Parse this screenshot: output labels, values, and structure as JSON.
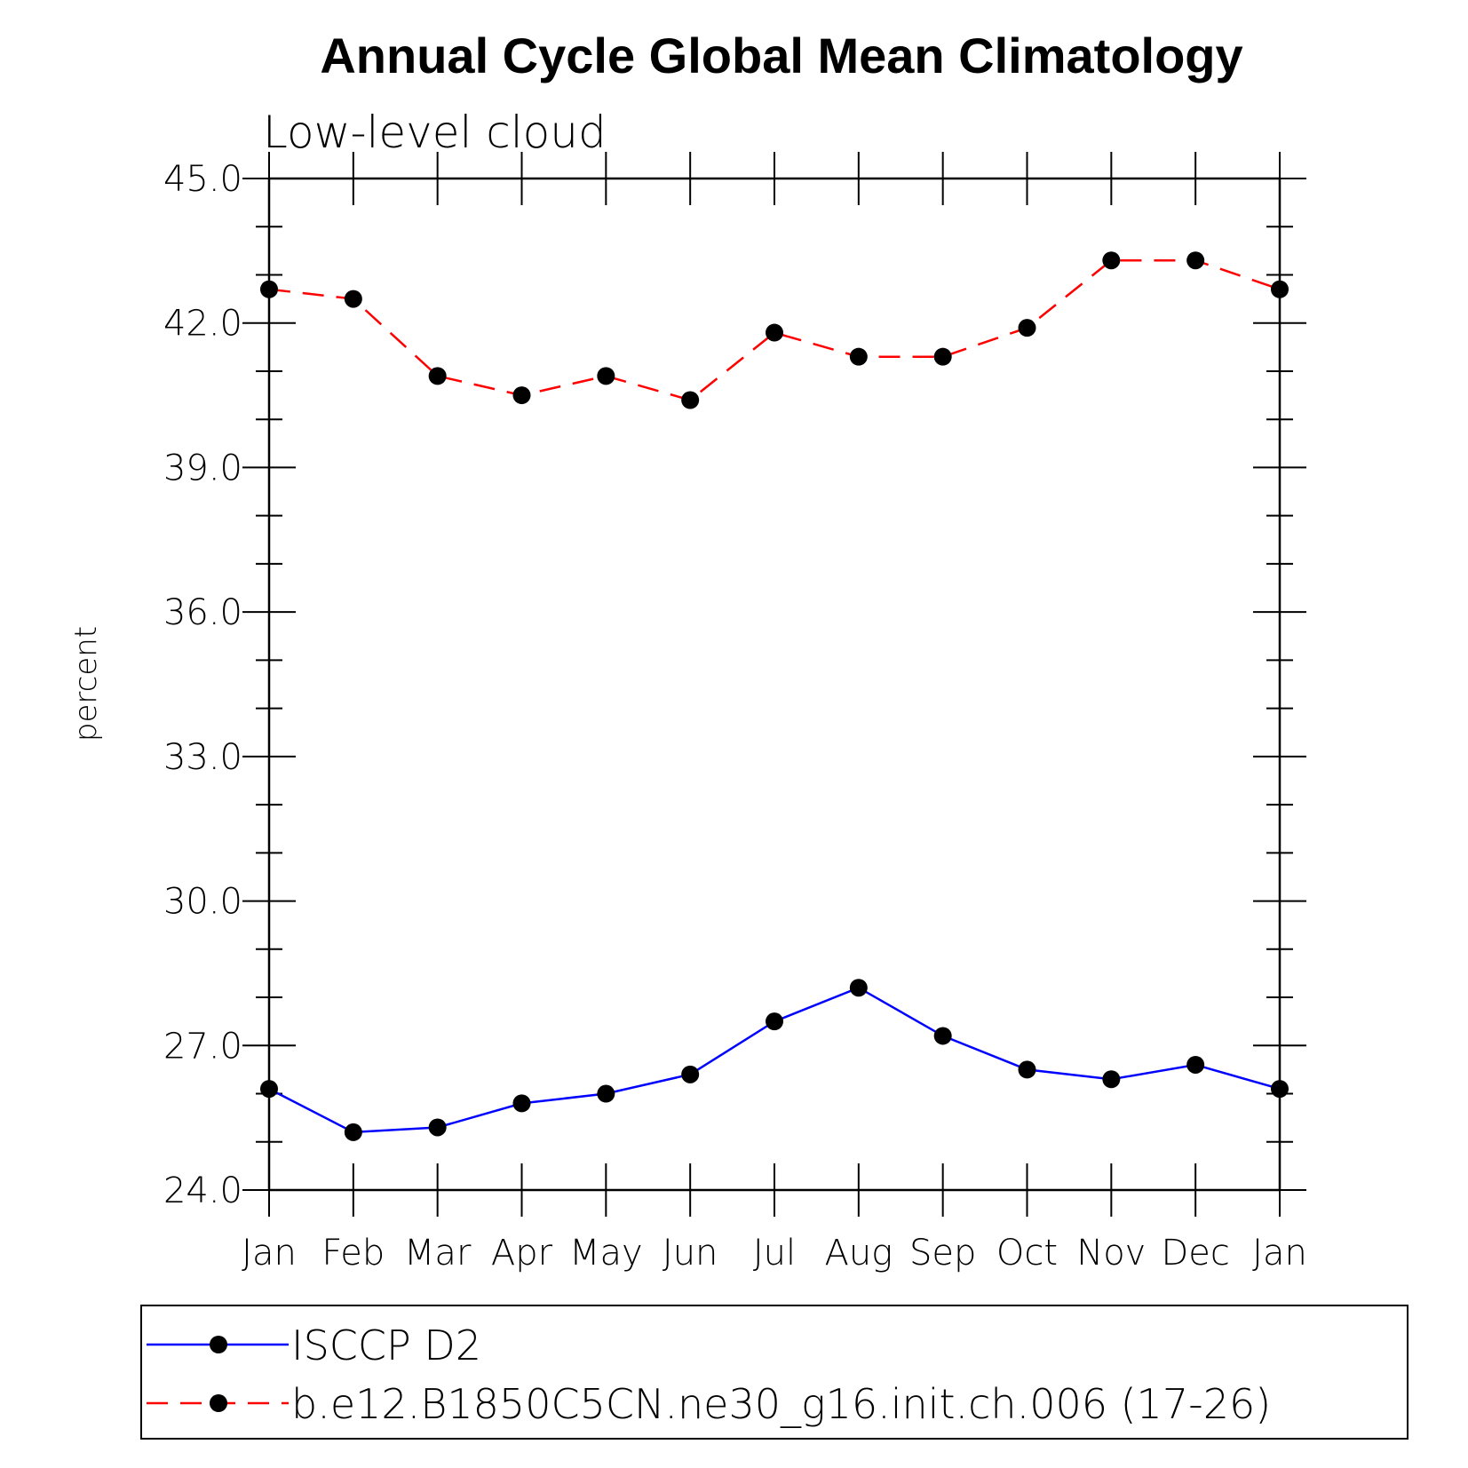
{
  "chart_data": {
    "type": "line",
    "title": "Annual Cycle Global Mean Climatology",
    "subtitle": "Low-level cloud",
    "xlabel": "",
    "ylabel": "percent",
    "categories": [
      "Jan",
      "Feb",
      "Mar",
      "Apr",
      "May",
      "Jun",
      "Jul",
      "Aug",
      "Sep",
      "Oct",
      "Nov",
      "Dec",
      "Jan"
    ],
    "ylim": [
      24.0,
      45.0
    ],
    "yticks": [
      "24.0",
      "27.0",
      "30.0",
      "33.0",
      "36.0",
      "39.0",
      "42.0",
      "45.0"
    ],
    "grid": false,
    "legend_position": "bottom",
    "series": [
      {
        "name": "ISCCP D2",
        "color": "#0000ff",
        "line_style": "solid",
        "marker": "filled-circle",
        "values": [
          26.1,
          25.2,
          25.3,
          25.8,
          26.0,
          26.4,
          27.5,
          28.2,
          27.2,
          26.5,
          26.3,
          26.6,
          26.1
        ]
      },
      {
        "name": "b.e12.B1850C5CN.ne30_g16.init.ch.006 (17-26)",
        "color": "#ff0000",
        "line_style": "dashed",
        "marker": "filled-circle",
        "values": [
          42.7,
          42.5,
          40.9,
          40.5,
          40.9,
          40.4,
          41.8,
          41.3,
          41.3,
          41.9,
          43.3,
          43.3,
          42.7
        ]
      }
    ]
  }
}
